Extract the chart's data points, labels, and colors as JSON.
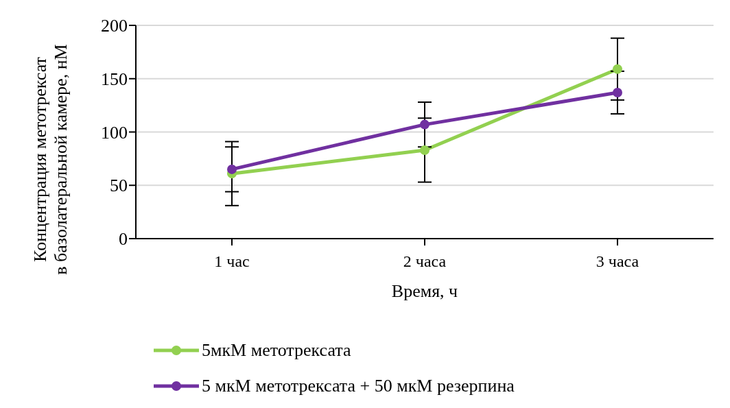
{
  "chart_data": {
    "type": "line",
    "xlabel": "Время, ч",
    "ylabel": "Концентрация метотрексат\nв базолатеральной камере, нМ",
    "categories": [
      "1 час",
      "2 часа",
      "3 часа"
    ],
    "series": [
      {
        "name": "5мкМ метотрексата",
        "color": "#92d050",
        "values": [
          61,
          83,
          159
        ],
        "errors": [
          30,
          30,
          29
        ]
      },
      {
        "name": "5 мкМ метотрексата + 50 мкМ резерпина",
        "color": "#7030a0",
        "values": [
          65,
          107,
          137
        ],
        "errors": [
          21,
          21,
          20
        ]
      }
    ],
    "ylim": [
      0,
      200
    ],
    "yticks": [
      0,
      50,
      100,
      150,
      200
    ],
    "grid": "y",
    "legend": "bottom",
    "marker": "circle",
    "line_style": "solid"
  }
}
